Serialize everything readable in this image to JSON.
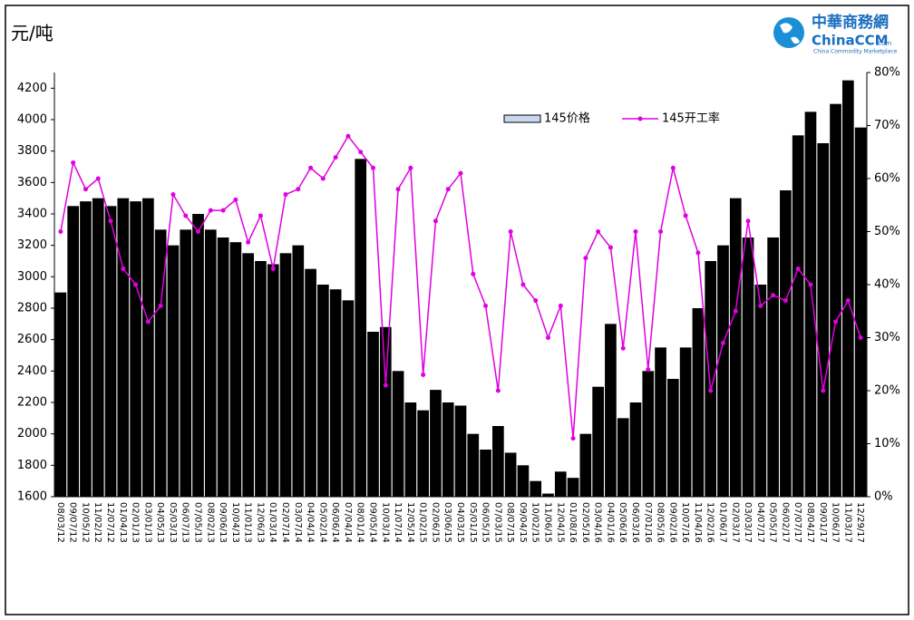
{
  "chart_data": {
    "type": "bar-line",
    "title": "元/吨",
    "logo": {
      "name": "中華商務網",
      "site": "ChinaCCM",
      "domain": ".com",
      "tagline": "China Commodity Marketplace"
    },
    "categories": [
      "08/03/12",
      "09/07/12",
      "10/05/12",
      "11/02/12",
      "12/07/12",
      "01/04/13",
      "02/01/13",
      "03/01/13",
      "04/05/13",
      "05/03/13",
      "06/07/13",
      "07/05/13",
      "08/02/13",
      "09/06/13",
      "10/04/13",
      "11/01/13",
      "12/06/13",
      "01/03/14",
      "02/07/14",
      "03/07/14",
      "04/04/14",
      "05/02/14",
      "06/06/14",
      "07/04/14",
      "08/01/14",
      "09/05/14",
      "10/03/14",
      "11/07/14",
      "12/05/14",
      "01/02/15",
      "02/06/15",
      "03/06/15",
      "04/03/15",
      "05/01/15",
      "06/05/15",
      "07/03/15",
      "08/07/15",
      "09/04/15",
      "10/02/15",
      "11/06/15",
      "12/04/15",
      "01/08/16",
      "02/05/16",
      "03/04/16",
      "04/01/16",
      "05/06/16",
      "06/03/16",
      "07/01/16",
      "08/05/16",
      "09/02/16",
      "10/07/16",
      "11/04/16",
      "12/02/16",
      "01/06/17",
      "02/03/17",
      "03/03/17",
      "04/07/17",
      "05/05/17",
      "06/02/17",
      "07/07/17",
      "08/04/17",
      "09/01/17",
      "10/06/17",
      "11/03/17",
      "12/29/17"
    ],
    "series": [
      {
        "name": "145价格",
        "type": "bar",
        "color": "#000000",
        "legend_color": "#c9d6ee",
        "values": [
          2900,
          3450,
          3480,
          3500,
          3450,
          3500,
          3480,
          3500,
          3300,
          3200,
          3300,
          3400,
          3300,
          3250,
          3220,
          3150,
          3100,
          3080,
          3150,
          3200,
          3050,
          2950,
          2920,
          2850,
          3750,
          2650,
          2680,
          2400,
          2200,
          2150,
          2280,
          2200,
          2180,
          2000,
          1900,
          2050,
          1880,
          1800,
          1700,
          1620,
          1760,
          1720,
          2000,
          2300,
          2700,
          2100,
          2200,
          2400,
          2550,
          2350,
          2550,
          2800,
          3100,
          3200,
          3500,
          3250,
          2950,
          3250,
          3550,
          3900,
          4050,
          3850,
          4100,
          4250,
          3950
        ]
      },
      {
        "name": "145开工率",
        "type": "line",
        "axis": "y2",
        "color": "#e000e0",
        "values": [
          50,
          63,
          58,
          60,
          52,
          43,
          40,
          33,
          36,
          57,
          53,
          50,
          54,
          54,
          56,
          48,
          53,
          43,
          57,
          58,
          62,
          60,
          64,
          68,
          65,
          62,
          21,
          58,
          62,
          23,
          52,
          58,
          61,
          42,
          36,
          20,
          50,
          40,
          37,
          30,
          36,
          11,
          45,
          50,
          47,
          28,
          50,
          24,
          50,
          62,
          53,
          46,
          20,
          29,
          35,
          52,
          36,
          38,
          37,
          43,
          40,
          20,
          33,
          37,
          30
        ]
      }
    ],
    "ylim": [
      1600,
      4300
    ],
    "yticks": [
      1600,
      1800,
      2000,
      2200,
      2400,
      2600,
      2800,
      3000,
      3200,
      3400,
      3600,
      3800,
      4000,
      4200
    ],
    "y2lim": [
      0,
      80
    ],
    "y2ticks": [
      {
        "value": 0,
        "label": "0%"
      },
      {
        "value": 10,
        "label": "10%"
      },
      {
        "value": 20,
        "label": "20%"
      },
      {
        "value": 30,
        "label": "30%"
      },
      {
        "value": 40,
        "label": "40%"
      },
      {
        "value": 50,
        "label": "50%"
      },
      {
        "value": 60,
        "label": "60%"
      },
      {
        "value": 70,
        "label": "70%"
      },
      {
        "value": 80,
        "label": "80%"
      }
    ]
  }
}
